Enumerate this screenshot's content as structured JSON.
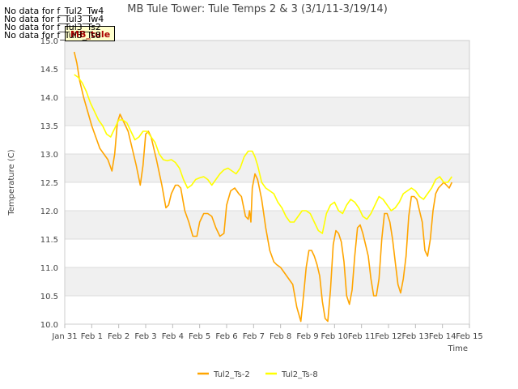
{
  "no_data_messages": [
    "No data for f_Tul2_Tw4",
    "No data for f_Tul3_Tw4",
    "No data for f_Tul3_Ts2",
    "No data for f_Tul3_Ts8"
  ],
  "tag_label": "MB_tule",
  "chart_data": {
    "type": "line",
    "title": "MB Tule Tower: Tule Temps 2 & 3 (3/1/11-3/19/14)",
    "xlabel": "Time",
    "ylabel": "Temperature (C)",
    "xlim": [
      0,
      15
    ],
    "ylim": [
      10.0,
      15.0
    ],
    "x_ticks": [
      0,
      1,
      2,
      3,
      4,
      5,
      6,
      7,
      8,
      9,
      10,
      11,
      12,
      13,
      14,
      15
    ],
    "x_tick_labels": [
      "Jan 31",
      "Feb 1",
      "Feb 2",
      "Feb 3",
      "Feb 4",
      "Feb 5",
      "Feb 6",
      "Feb 7",
      "Feb 8",
      "Feb 9",
      "Feb 10",
      "Feb 11",
      "Feb 12",
      "Feb 13",
      "Feb 14",
      "Feb 15"
    ],
    "y_ticks": [
      10.0,
      10.5,
      11.0,
      11.5,
      12.0,
      12.5,
      13.0,
      13.5,
      14.0,
      14.5,
      15.0
    ],
    "y_tick_labels": [
      "10.0",
      "10.5",
      "11.0",
      "11.5",
      "12.0",
      "12.5",
      "13.0",
      "13.5",
      "14.0",
      "14.5",
      "15.0"
    ],
    "grid": true,
    "legend_position": "bottom",
    "series": [
      {
        "name": "Tul2_Ts-2",
        "color": "#FFA500",
        "x": [
          0.35,
          0.45,
          0.55,
          0.7,
          0.85,
          1.0,
          1.15,
          1.3,
          1.45,
          1.6,
          1.75,
          1.85,
          1.95,
          2.05,
          2.15,
          2.25,
          2.35,
          2.5,
          2.65,
          2.8,
          2.9,
          3.0,
          3.1,
          3.2,
          3.4,
          3.6,
          3.75,
          3.85,
          3.95,
          4.1,
          4.2,
          4.3,
          4.45,
          4.6,
          4.75,
          4.9,
          5.0,
          5.15,
          5.3,
          5.45,
          5.6,
          5.75,
          5.9,
          6.0,
          6.15,
          6.3,
          6.45,
          6.55,
          6.7,
          6.8,
          6.85,
          6.9,
          6.95,
          7.05,
          7.15,
          7.3,
          7.45,
          7.6,
          7.75,
          7.85,
          8.0,
          8.15,
          8.3,
          8.45,
          8.6,
          8.75,
          8.85,
          8.95,
          9.05,
          9.15,
          9.25,
          9.35,
          9.45,
          9.55,
          9.65,
          9.75,
          9.85,
          9.95,
          10.05,
          10.15,
          10.25,
          10.35,
          10.45,
          10.55,
          10.65,
          10.75,
          10.85,
          10.95,
          11.05,
          11.15,
          11.25,
          11.35,
          11.45,
          11.55,
          11.65,
          11.75,
          11.85,
          11.95,
          12.05,
          12.15,
          12.25,
          12.35,
          12.45,
          12.55,
          12.65,
          12.75,
          12.85,
          12.95,
          13.05,
          13.15,
          13.25,
          13.35,
          13.45,
          13.55,
          13.65,
          13.75,
          13.85,
          13.95,
          14.05,
          14.15,
          14.25,
          14.35
        ],
        "values": [
          14.8,
          14.6,
          14.3,
          14.0,
          13.75,
          13.5,
          13.3,
          13.1,
          13.0,
          12.9,
          12.7,
          13.0,
          13.55,
          13.7,
          13.6,
          13.5,
          13.4,
          13.1,
          12.8,
          12.45,
          12.8,
          13.35,
          13.4,
          13.3,
          12.9,
          12.45,
          12.05,
          12.1,
          12.3,
          12.45,
          12.45,
          12.4,
          12.0,
          11.8,
          11.55,
          11.55,
          11.8,
          11.95,
          11.95,
          11.9,
          11.7,
          11.55,
          11.6,
          12.1,
          12.35,
          12.4,
          12.3,
          12.25,
          11.9,
          11.85,
          12.0,
          11.8,
          12.4,
          12.65,
          12.55,
          12.2,
          11.7,
          11.3,
          11.1,
          11.05,
          11.0,
          10.9,
          10.8,
          10.7,
          10.3,
          10.05,
          10.5,
          11.0,
          11.3,
          11.3,
          11.2,
          11.05,
          10.85,
          10.4,
          10.1,
          10.05,
          10.6,
          11.4,
          11.65,
          11.6,
          11.45,
          11.1,
          10.5,
          10.35,
          10.6,
          11.2,
          11.7,
          11.75,
          11.6,
          11.4,
          11.2,
          10.8,
          10.5,
          10.5,
          10.8,
          11.5,
          11.95,
          11.95,
          11.8,
          11.5,
          11.1,
          10.7,
          10.55,
          10.8,
          11.2,
          11.9,
          12.25,
          12.25,
          12.2,
          12.0,
          11.8,
          11.3,
          11.2,
          11.5,
          12.0,
          12.3,
          12.4,
          12.45,
          12.5,
          12.45,
          12.4,
          12.5
        ]
      },
      {
        "name": "Tul2_Ts-8",
        "color": "#FFFF00",
        "x": [
          0.35,
          0.5,
          0.65,
          0.8,
          0.95,
          1.1,
          1.25,
          1.4,
          1.55,
          1.7,
          1.85,
          2.0,
          2.15,
          2.3,
          2.45,
          2.6,
          2.75,
          2.9,
          3.05,
          3.2,
          3.35,
          3.5,
          3.65,
          3.8,
          3.95,
          4.1,
          4.25,
          4.4,
          4.55,
          4.7,
          4.85,
          5.0,
          5.15,
          5.3,
          5.45,
          5.6,
          5.75,
          5.9,
          6.05,
          6.2,
          6.35,
          6.5,
          6.65,
          6.8,
          6.95,
          7.05,
          7.15,
          7.3,
          7.45,
          7.6,
          7.75,
          7.9,
          8.05,
          8.2,
          8.35,
          8.5,
          8.65,
          8.8,
          8.95,
          9.1,
          9.25,
          9.4,
          9.55,
          9.7,
          9.85,
          10.0,
          10.15,
          10.3,
          10.45,
          10.6,
          10.75,
          10.9,
          11.05,
          11.2,
          11.35,
          11.5,
          11.65,
          11.8,
          11.95,
          12.1,
          12.25,
          12.4,
          12.55,
          12.7,
          12.85,
          13.0,
          13.15,
          13.3,
          13.45,
          13.6,
          13.75,
          13.9,
          14.05,
          14.2,
          14.35
        ],
        "values": [
          14.4,
          14.35,
          14.25,
          14.1,
          13.9,
          13.75,
          13.6,
          13.5,
          13.35,
          13.3,
          13.45,
          13.6,
          13.6,
          13.55,
          13.4,
          13.25,
          13.3,
          13.4,
          13.4,
          13.3,
          13.2,
          13.0,
          12.9,
          12.88,
          12.9,
          12.85,
          12.75,
          12.55,
          12.4,
          12.45,
          12.55,
          12.58,
          12.6,
          12.55,
          12.45,
          12.55,
          12.65,
          12.72,
          12.75,
          12.7,
          12.65,
          12.75,
          12.95,
          13.05,
          13.05,
          12.95,
          12.8,
          12.5,
          12.4,
          12.35,
          12.3,
          12.15,
          12.05,
          11.9,
          11.8,
          11.8,
          11.9,
          12.0,
          12.0,
          11.95,
          11.8,
          11.65,
          11.6,
          11.95,
          12.1,
          12.15,
          12.0,
          11.95,
          12.1,
          12.2,
          12.15,
          12.05,
          11.9,
          11.85,
          11.95,
          12.1,
          12.25,
          12.2,
          12.1,
          12.0,
          12.05,
          12.15,
          12.3,
          12.35,
          12.4,
          12.35,
          12.25,
          12.2,
          12.3,
          12.4,
          12.55,
          12.6,
          12.5,
          12.5,
          12.6
        ]
      }
    ]
  }
}
